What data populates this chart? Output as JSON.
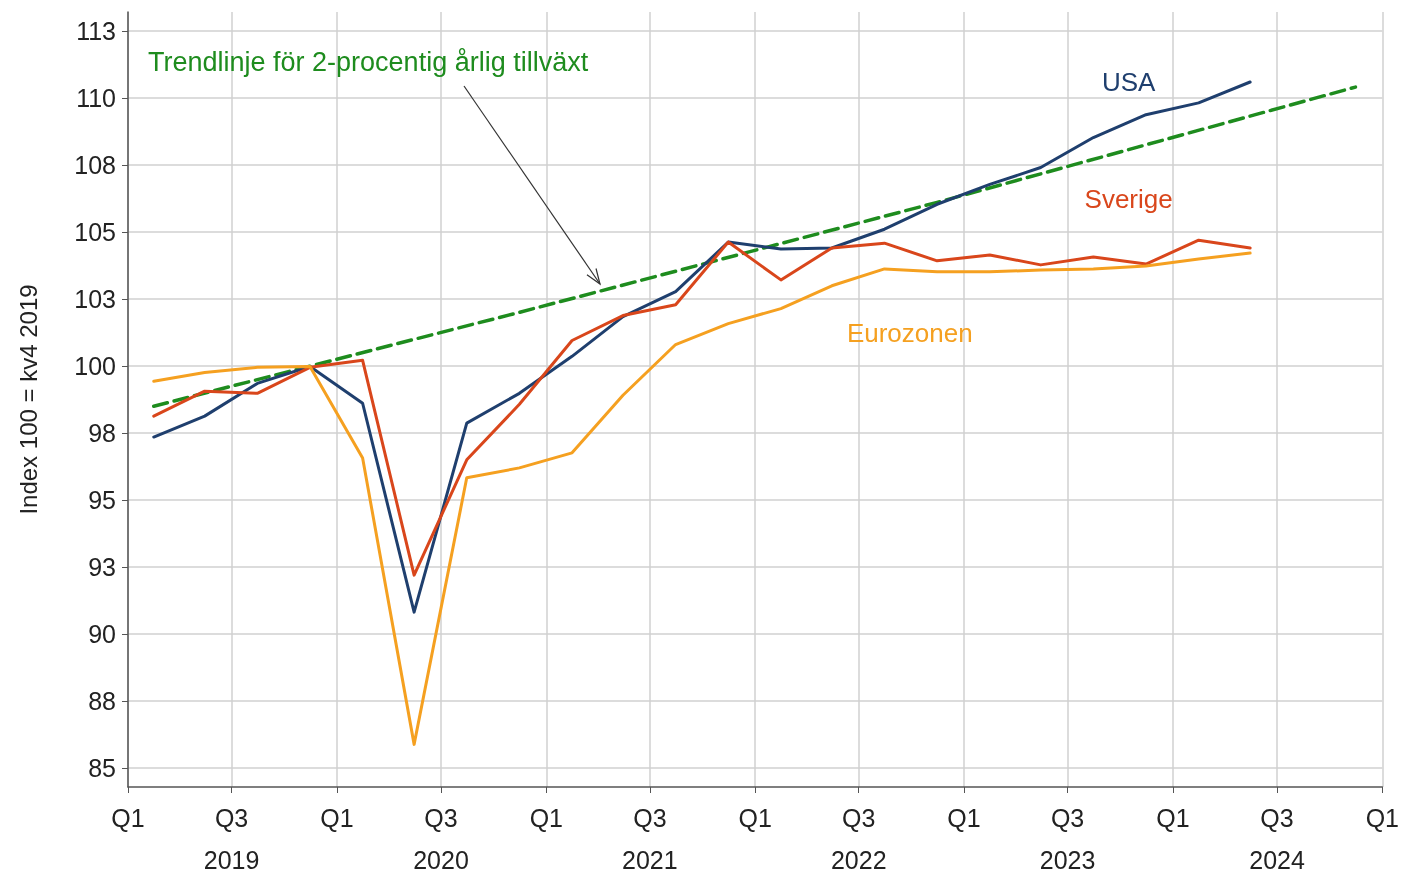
{
  "chart_data": {
    "type": "line",
    "ylabel": "Index 100 = kv4 2019",
    "x": [
      "2019-02-15",
      "2019-05-15",
      "2019-08-15",
      "2019-11-15",
      "2020-02-15",
      "2020-05-15",
      "2020-08-15",
      "2020-11-15",
      "2021-02-15",
      "2021-05-15",
      "2021-08-15",
      "2021-11-15",
      "2022-02-15",
      "2022-05-15",
      "2022-08-15",
      "2022-11-15",
      "2023-02-15",
      "2023-05-15",
      "2023-08-15",
      "2023-11-15",
      "2024-02-15",
      "2024-05-15"
    ],
    "series": [
      {
        "name": "USA",
        "color": "#1f3f6e",
        "values": [
          97.35,
          98.13,
          99.35,
          99.98,
          98.61,
          90.82,
          97.87,
          98.98,
          100.36,
          101.84,
          102.77,
          104.62,
          104.36,
          104.4,
          105.1,
          106.03,
          106.77,
          107.4,
          108.52,
          109.37,
          109.81,
          110.59
        ]
      },
      {
        "name": "Sverige",
        "color": "#d9461b",
        "values": [
          98.13,
          99.06,
          98.98,
          99.95,
          100.21,
          92.2,
          96.5,
          98.57,
          100.95,
          101.88,
          102.28,
          104.62,
          103.21,
          104.4,
          104.58,
          103.92,
          104.14,
          103.77,
          104.06,
          103.8,
          104.69,
          104.4
        ]
      },
      {
        "name": "Eurozonen",
        "color": "#f5a020",
        "values": [
          99.43,
          99.76,
          99.95,
          99.98,
          96.57,
          85.89,
          95.83,
          96.2,
          96.76,
          98.91,
          100.8,
          101.58,
          102.14,
          102.99,
          103.62,
          103.51,
          103.51,
          103.58,
          103.62,
          103.73,
          103.99,
          104.21
        ]
      },
      {
        "type": "line",
        "color": "#1e8c1e",
        "line_style": "dashed",
        "x": [
          "2019-02-15",
          "2020-11-15",
          "2022-11-15",
          "2024-11-15"
        ],
        "values": [
          98.5,
          102.0,
          106.1,
          110.4
        ]
      }
    ],
    "annotations": [
      "Trendlinje för 2-procentig årlig tillväxt"
    ],
    "xlim": [
      "2019-01-01",
      "2025-01-01"
    ],
    "xticks": [
      {
        "value": "2019-01-01",
        "label": "Q1"
      },
      {
        "value": "2019-07-01",
        "label": "Q3\n2019"
      },
      {
        "value": "2020-01-01",
        "label": "Q1"
      },
      {
        "value": "2020-07-01",
        "label": "Q3\n2020"
      },
      {
        "value": "2021-01-01",
        "label": "Q1"
      },
      {
        "value": "2021-07-01",
        "label": "Q3\n2021"
      },
      {
        "value": "2022-01-01",
        "label": "Q1"
      },
      {
        "value": "2022-07-01",
        "label": "Q3\n2022"
      },
      {
        "value": "2023-01-01",
        "label": "Q1"
      },
      {
        "value": "2023-07-01",
        "label": "Q3\n2023"
      },
      {
        "value": "2024-01-01",
        "label": "Q1"
      },
      {
        "value": "2024-07-01",
        "label": "Q3\n2024"
      },
      {
        "value": "2025-01-01",
        "label": "Q1"
      }
    ],
    "ylim": [
      84.3,
      113.2
    ],
    "yticks": [
      85,
      {
        "value": 87.5,
        "label": "88"
      },
      90,
      {
        "value": 92.5,
        "label": "93"
      },
      95,
      {
        "value": 97.5,
        "label": "98"
      },
      100,
      {
        "value": 102.5,
        "label": "103"
      },
      105,
      {
        "value": 107.5,
        "label": "108"
      },
      110,
      {
        "value": 112.5,
        "label": "113"
      }
    ],
    "grid": true,
    "legend": false,
    "marker": "none",
    "line_style": "solid"
  }
}
